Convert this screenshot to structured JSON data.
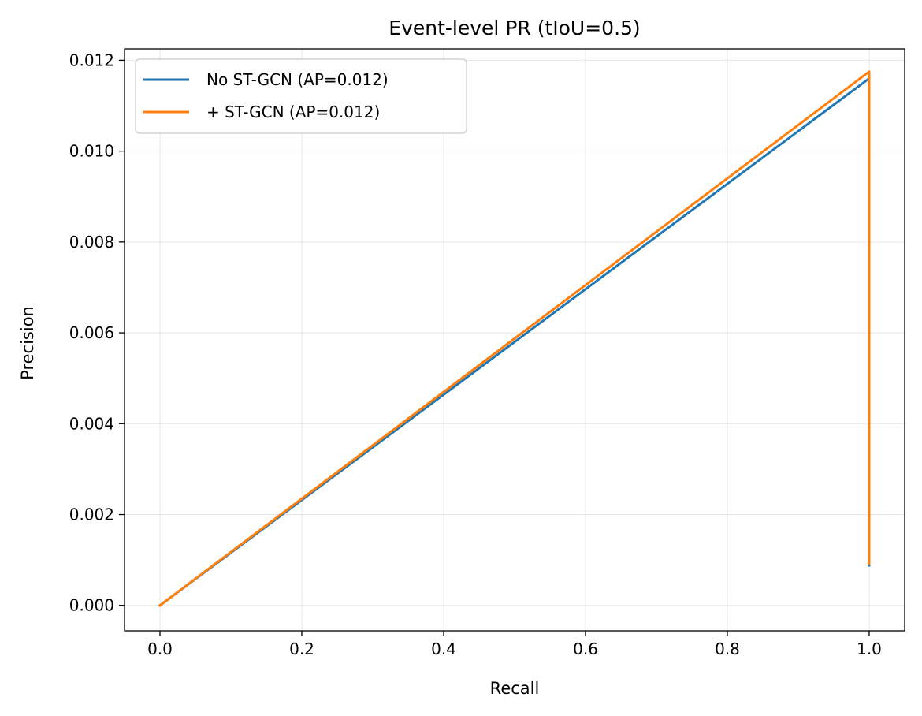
{
  "chart_data": {
    "type": "line",
    "title": "Event-level PR (tIoU=0.5)",
    "xlabel": "Recall",
    "ylabel": "Precision",
    "xlim": [
      -0.05,
      1.05
    ],
    "ylim": [
      -0.00056,
      0.01225
    ],
    "xticks": [
      0.0,
      0.2,
      0.4,
      0.6,
      0.8,
      1.0
    ],
    "xtick_labels": [
      "0.0",
      "0.2",
      "0.4",
      "0.6",
      "0.8",
      "1.0"
    ],
    "yticks": [
      0.0,
      0.002,
      0.004,
      0.006,
      0.008,
      0.01,
      0.012
    ],
    "ytick_labels": [
      "0.000",
      "0.002",
      "0.004",
      "0.006",
      "0.008",
      "0.010",
      "0.012"
    ],
    "grid": true,
    "legend_position": "upper-left",
    "series": [
      {
        "name": "No ST-GCN (AP=0.012)",
        "color": "#1f77b4",
        "x": [
          0.0,
          1.0,
          1.0
        ],
        "y": [
          0.0,
          0.0116,
          0.00088
        ]
      },
      {
        "name": "+ ST-GCN (AP=0.012)",
        "color": "#ff7f0e",
        "x": [
          0.0,
          1.0,
          1.0
        ],
        "y": [
          0.0,
          0.01175,
          0.00092
        ]
      }
    ]
  }
}
